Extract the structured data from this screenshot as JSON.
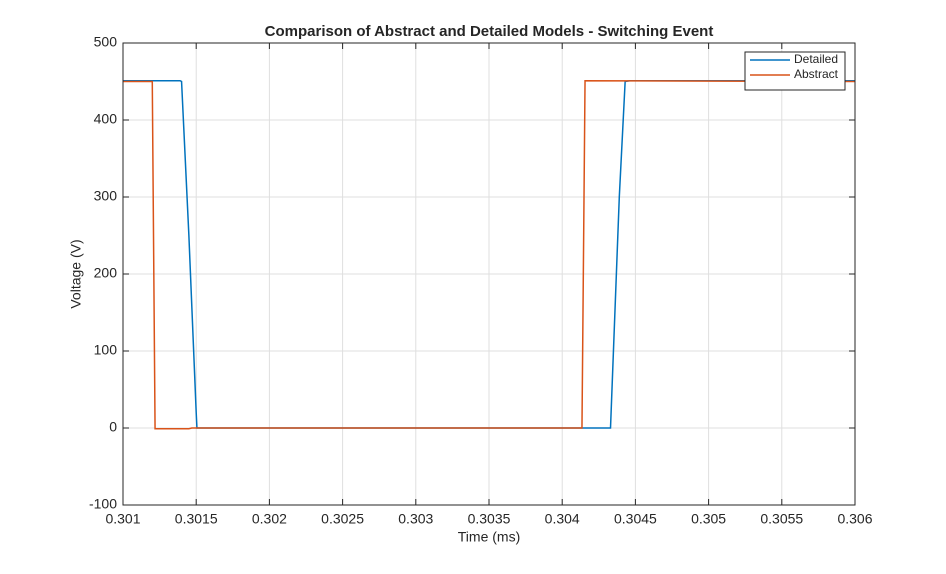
{
  "chart_data": {
    "type": "line",
    "title": "Comparison of Abstract and Detailed Models - Switching Event",
    "x_label": "Time (ms)",
    "y_label": "Voltage (V)",
    "xlim": [
      0.301,
      0.306
    ],
    "xticks": [
      0.301,
      0.3015,
      0.302,
      0.3025,
      0.303,
      0.3035,
      0.304,
      0.3045,
      0.305,
      0.3055,
      0.306
    ],
    "ylim": [
      -100,
      500
    ],
    "yticks": [
      -100,
      0,
      100,
      200,
      300,
      400,
      500
    ],
    "grid": true,
    "legend": "northeast",
    "series": [
      {
        "name": "Detailed",
        "color": "#0072bd",
        "x": [
          0.301,
          0.30139,
          0.3014,
          0.30145,
          0.3015,
          0.301505,
          0.30152,
          0.30433,
          0.30439,
          0.30443,
          0.30446,
          0.306
        ],
        "values": [
          451,
          451,
          450,
          250,
          20,
          0,
          0,
          0,
          300,
          450,
          451,
          451
        ]
      },
      {
        "name": "Abstract",
        "color": "#d95319",
        "x": [
          0.301,
          0.3012,
          0.301219,
          0.30145,
          0.30147,
          0.304135,
          0.304156,
          0.306
        ],
        "values": [
          450,
          450,
          -1,
          -1,
          0,
          0,
          451,
          450
        ]
      }
    ]
  }
}
